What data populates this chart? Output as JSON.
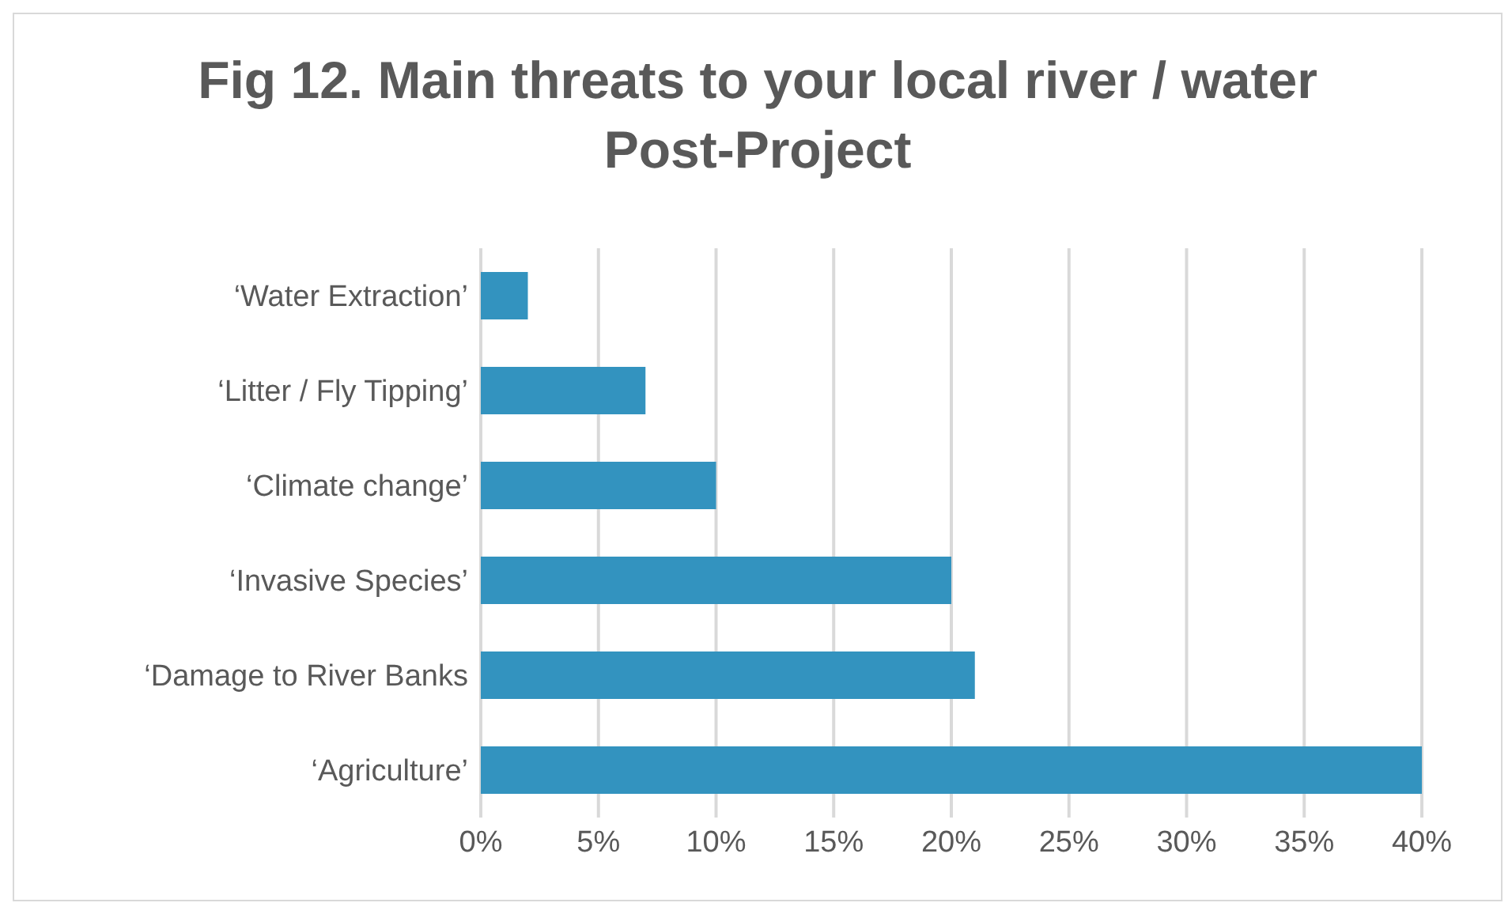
{
  "chart_data": {
    "type": "bar",
    "orientation": "horizontal",
    "title": "Fig 12. Main threats to your local river / water Post-Project",
    "categories": [
      "‘Water Extraction’",
      "‘Litter / Fly Tipping’",
      "‘Climate change’",
      "‘Invasive Species’",
      "‘Damage to River Banks",
      "‘Agriculture’"
    ],
    "values": [
      2,
      7,
      10,
      20,
      21,
      40
    ],
    "color": "#3393bf",
    "xlim": [
      0,
      40
    ],
    "xticks": [
      {
        "value": 0,
        "label": "0%"
      },
      {
        "value": 5,
        "label": "5%"
      },
      {
        "value": 10,
        "label": "10%"
      },
      {
        "value": 15,
        "label": "15%"
      },
      {
        "value": 20,
        "label": "20%"
      },
      {
        "value": 25,
        "label": "25%"
      },
      {
        "value": 30,
        "label": "30%"
      },
      {
        "value": 35,
        "label": "35%"
      },
      {
        "value": 40,
        "label": "40%"
      }
    ],
    "grid": "x"
  }
}
